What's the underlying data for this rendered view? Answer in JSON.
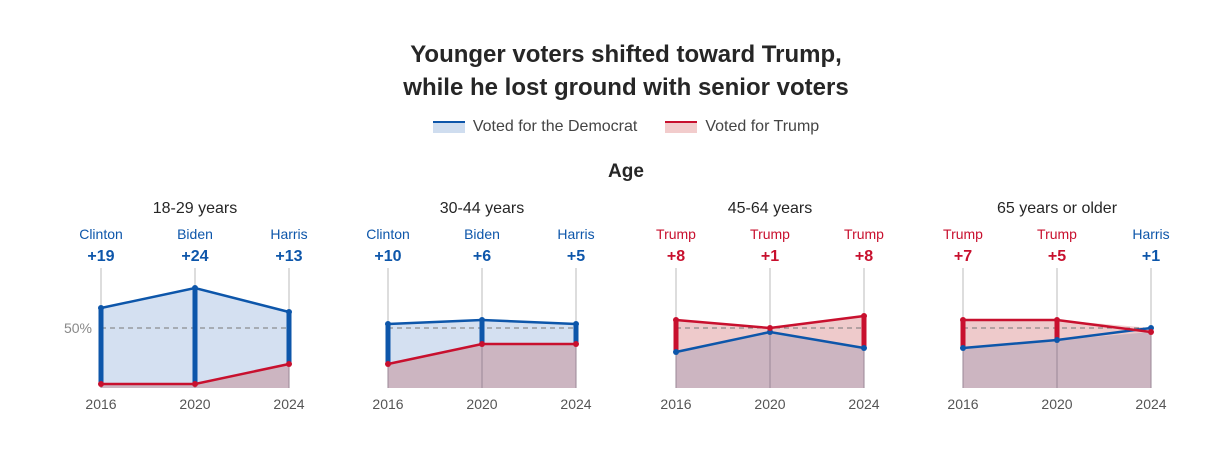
{
  "title": {
    "line1": "Younger voters shifted toward Trump,",
    "line2": "while he lost ground with senior voters"
  },
  "legend": {
    "democrat": "Voted for the Democrat",
    "trump": "Voted for Trump"
  },
  "section_title": "Age",
  "colors": {
    "democrat": "#0d56aa",
    "republican": "#c8102e",
    "democrat_fill": "#cfddef",
    "republican_fill": "#c9b1be",
    "gridline": "#bbbbbb"
  },
  "chart_data": [
    {
      "type": "line",
      "title": "18-29 years",
      "x": [
        "2016",
        "2020",
        "2024"
      ],
      "reference_label": "50%",
      "winners": [
        "Clinton",
        "Biden",
        "Harris"
      ],
      "margins": [
        "+19",
        "+24",
        "+13"
      ],
      "series": [
        {
          "name": "Voted for the Democrat",
          "values": [
            55,
            60,
            54
          ]
        },
        {
          "name": "Voted for Trump",
          "values": [
            36,
            36,
            41
          ]
        }
      ]
    },
    {
      "type": "line",
      "title": "30-44 years",
      "x": [
        "2016",
        "2020",
        "2024"
      ],
      "reference_label": "",
      "winners": [
        "Clinton",
        "Biden",
        "Harris"
      ],
      "margins": [
        "+10",
        "+6",
        "+5"
      ],
      "series": [
        {
          "name": "Voted for the Democrat",
          "values": [
            51,
            52,
            51
          ]
        },
        {
          "name": "Voted for Trump",
          "values": [
            41,
            46,
            46
          ]
        }
      ]
    },
    {
      "type": "line",
      "title": "45-64 years",
      "x": [
        "2016",
        "2020",
        "2024"
      ],
      "reference_label": "",
      "winners": [
        "Trump",
        "Trump",
        "Trump"
      ],
      "margins": [
        "+8",
        "+1",
        "+8"
      ],
      "series": [
        {
          "name": "Voted for the Democrat",
          "values": [
            44,
            49,
            45
          ]
        },
        {
          "name": "Voted for Trump",
          "values": [
            52,
            50,
            53
          ]
        }
      ]
    },
    {
      "type": "line",
      "title": "65 years or older",
      "x": [
        "2016",
        "2020",
        "2024"
      ],
      "reference_label": "",
      "winners": [
        "Trump",
        "Trump",
        "Harris"
      ],
      "margins": [
        "+7",
        "+5",
        "+1"
      ],
      "series": [
        {
          "name": "Voted for the Democrat",
          "values": [
            45,
            47,
            50
          ]
        },
        {
          "name": "Voted for Trump",
          "values": [
            52,
            52,
            49
          ]
        }
      ]
    }
  ]
}
